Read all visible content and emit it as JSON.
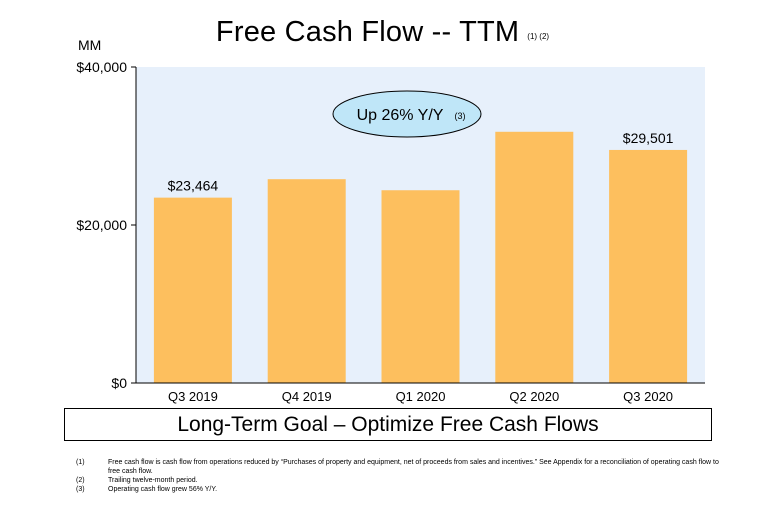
{
  "title": "Free Cash Flow -- TTM",
  "title_footnote_refs": "(1) (2)",
  "unit_label": "MM",
  "callout": {
    "text": "Up 26% Y/Y",
    "ref": "(3)"
  },
  "goal_text": "Long-Term Goal – Optimize Free Cash Flows",
  "footnotes": [
    {
      "num": "(1)",
      "text": "Free cash flow is cash flow from operations reduced by “Purchases of property and equipment, net of proceeds from sales and incentives.” See Appendix for a reconciliation of operating cash flow to free cash flow."
    },
    {
      "num": "(2)",
      "text": "Trailing twelve-month period."
    },
    {
      "num": "(3)",
      "text": "Operating cash flow grew 56% Y/Y."
    }
  ],
  "colors": {
    "bar": "#FDBF5E",
    "plot_bg": "#E7F0FB",
    "callout_fill": "#BFE6F8"
  },
  "chart_data": {
    "type": "bar",
    "title": "Free Cash Flow -- TTM",
    "ylabel": "MM",
    "categories": [
      "Q3 2019",
      "Q4 2019",
      "Q1 2020",
      "Q2 2020",
      "Q3 2020"
    ],
    "values": [
      23464,
      25800,
      24400,
      31800,
      29501
    ],
    "data_labels": [
      "$23,464",
      "",
      "",
      "",
      "$29,501"
    ],
    "ylim": [
      0,
      40000
    ],
    "yticks": [
      0,
      20000,
      40000
    ],
    "ytick_labels": [
      "$0",
      "$20,000",
      "$40,000"
    ],
    "grid": false,
    "legend": "none"
  }
}
